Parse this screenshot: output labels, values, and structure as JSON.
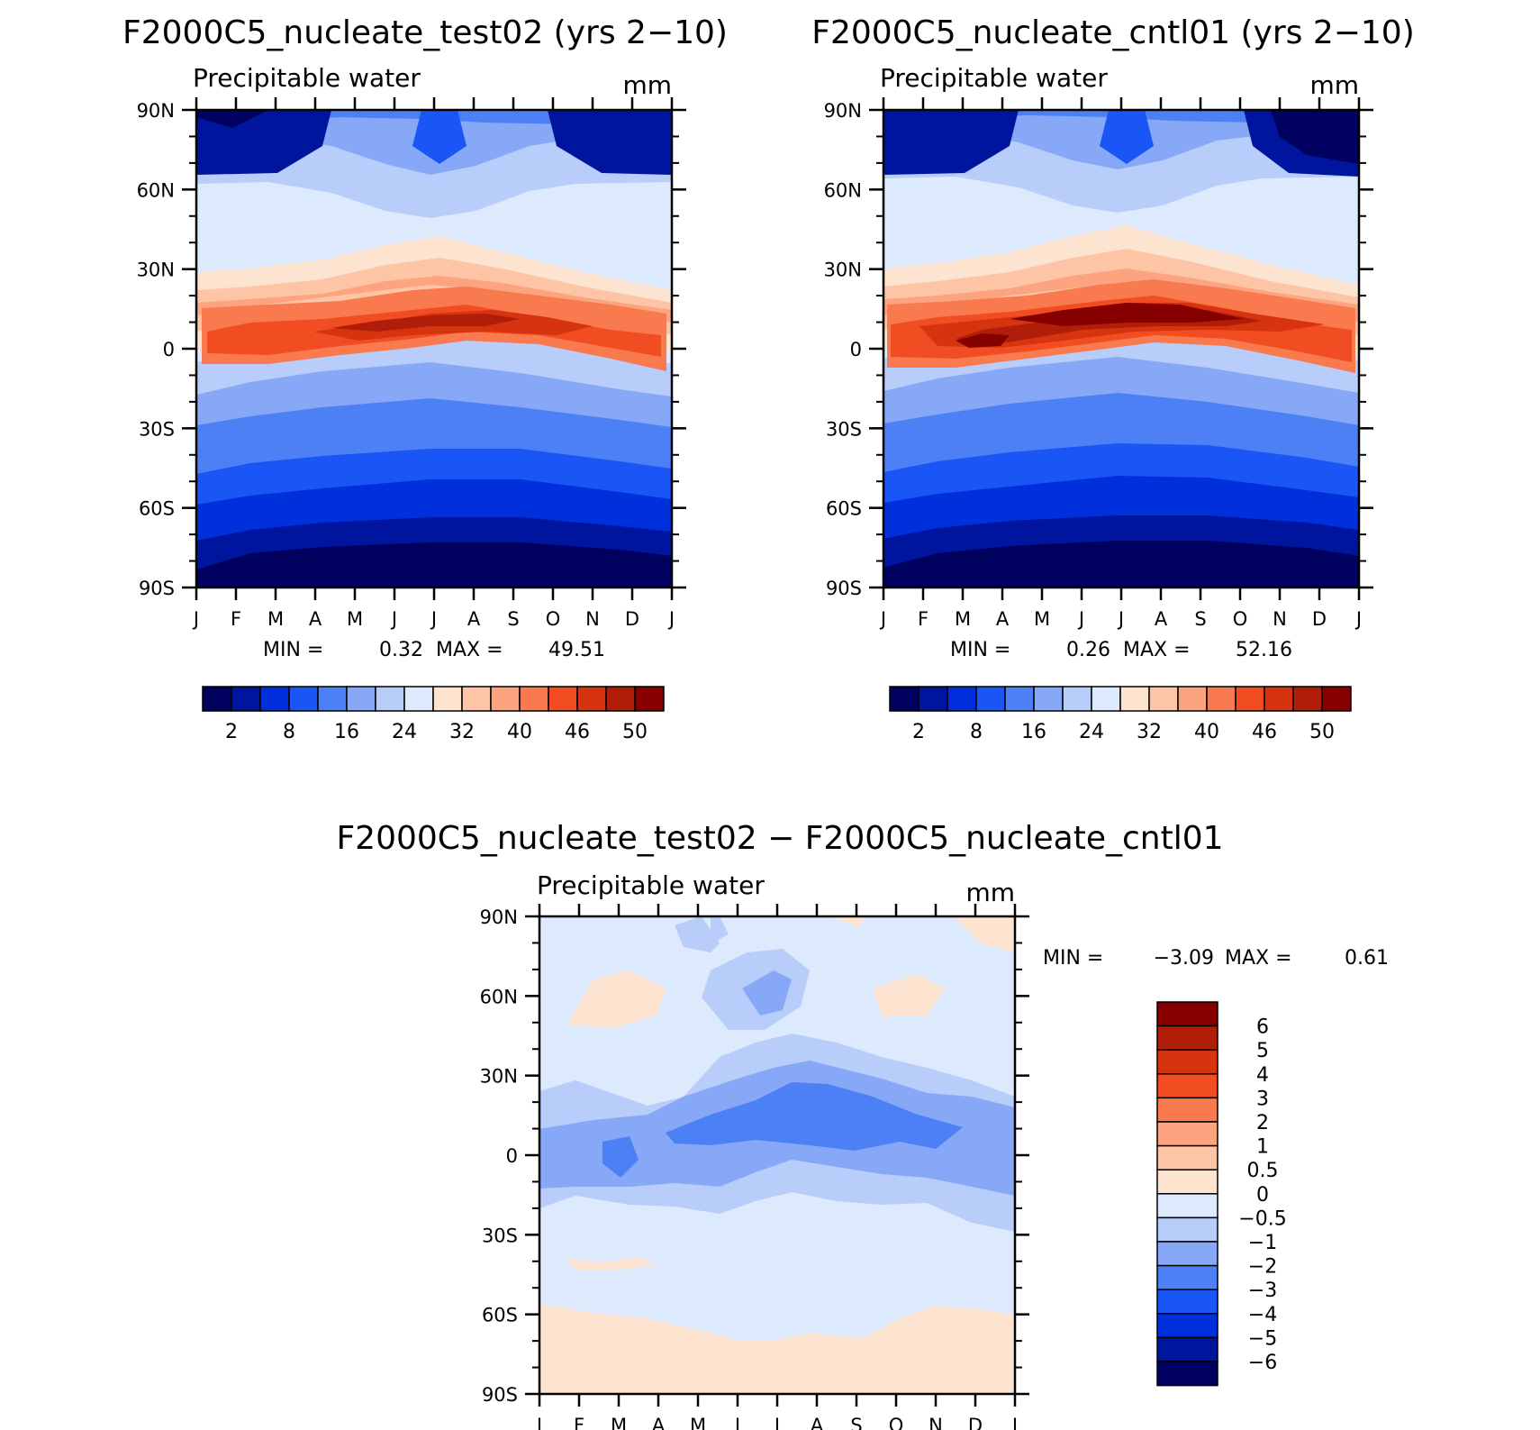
{
  "chart_data": [
    {
      "type": "heatmap",
      "title": "F2000C5_nucleate_test02 (yrs 2-10)",
      "subtitle": "Precipitable water",
      "units": "mm",
      "x_ticks": [
        "J",
        "F",
        "M",
        "A",
        "M",
        "J",
        "J",
        "A",
        "S",
        "O",
        "N",
        "D",
        "J"
      ],
      "y_ticks": [
        "90N",
        "60N",
        "30N",
        "0",
        "30S",
        "60S",
        "90S"
      ],
      "ylim": [
        -90,
        90
      ],
      "stats": {
        "min_label": "MIN =",
        "min": "0.32",
        "max_label": "MAX =",
        "max": "49.51"
      },
      "colorbar": {
        "orientation": "horizontal",
        "colors": [
          "#00005e",
          "#00159e",
          "#0030dc",
          "#1a55f5",
          "#4d7ff5",
          "#86a8f7",
          "#b8cdfa",
          "#dde9fd",
          "#fde4d0",
          "#fdc5a6",
          "#fca380",
          "#f97a4e",
          "#f24d22",
          "#d6330f",
          "#b01e0a",
          "#860000"
        ],
        "labels": [
          "2",
          "8",
          "16",
          "24",
          "32",
          "40",
          "46",
          "50"
        ]
      }
    },
    {
      "type": "heatmap",
      "title": "F2000C5_nucleate_cntl01 (yrs 2-10)",
      "subtitle": "Precipitable water",
      "units": "mm",
      "x_ticks": [
        "J",
        "F",
        "M",
        "A",
        "M",
        "J",
        "J",
        "A",
        "S",
        "O",
        "N",
        "D",
        "J"
      ],
      "y_ticks": [
        "90N",
        "60N",
        "30N",
        "0",
        "30S",
        "60S",
        "90S"
      ],
      "ylim": [
        -90,
        90
      ],
      "stats": {
        "min_label": "MIN =",
        "min": "0.26",
        "max_label": "MAX =",
        "max": "52.16"
      },
      "colorbar": {
        "orientation": "horizontal",
        "colors": [
          "#00005e",
          "#00159e",
          "#0030dc",
          "#1a55f5",
          "#4d7ff5",
          "#86a8f7",
          "#b8cdfa",
          "#dde9fd",
          "#fde4d0",
          "#fdc5a6",
          "#fca380",
          "#f97a4e",
          "#f24d22",
          "#d6330f",
          "#b01e0a",
          "#860000"
        ],
        "labels": [
          "2",
          "8",
          "16",
          "24",
          "32",
          "40",
          "46",
          "50"
        ]
      }
    },
    {
      "type": "heatmap",
      "title": "F2000C5_nucleate_test02 - F2000C5_nucleate_cntl01",
      "subtitle": "Precipitable water",
      "units": "mm",
      "x_ticks": [
        "J",
        "F",
        "M",
        "A",
        "M",
        "J",
        "J",
        "A",
        "S",
        "O",
        "N",
        "D",
        "J"
      ],
      "y_ticks": [
        "90N",
        "60N",
        "30N",
        "0",
        "30S",
        "60S",
        "90S"
      ],
      "ylim": [
        -90,
        90
      ],
      "stats": {
        "min_label": "MIN =",
        "min": "-3.09",
        "max_label": "MAX =",
        "max": "0.61"
      },
      "colorbar": {
        "orientation": "vertical",
        "colors_top_to_bottom": [
          "#860000",
          "#b01e0a",
          "#d6330f",
          "#f24d22",
          "#f97a4e",
          "#fca380",
          "#fdc5a6",
          "#fde4d0",
          "#dde9fd",
          "#b8cdfa",
          "#86a8f7",
          "#4d7ff5",
          "#1a55f5",
          "#0030dc",
          "#00159e",
          "#00005e"
        ],
        "labels_top_to_bottom": [
          "6",
          "5",
          "4",
          "3",
          "2",
          "1",
          "0.5",
          "0",
          "-0.5",
          "-1",
          "-2",
          "-3",
          "-4",
          "-5",
          "-6"
        ]
      }
    }
  ]
}
